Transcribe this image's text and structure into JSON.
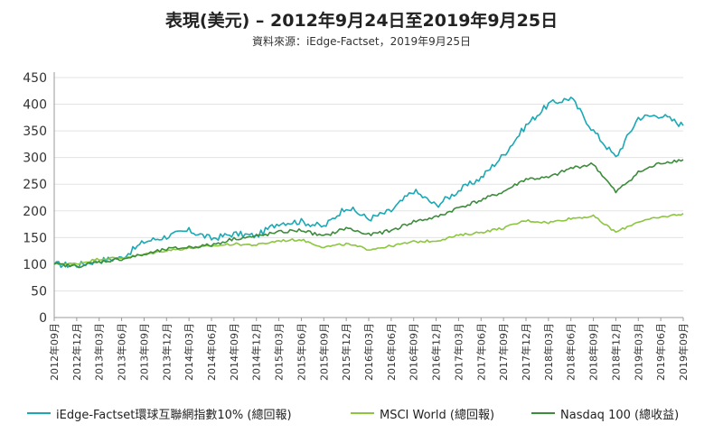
{
  "title": "表現(美元) – 2012年9月24日至2019年9月25日",
  "subtitle": "資料來源：iEdge-Factset，2019年9月25日",
  "chart_data": {
    "type": "line",
    "title": "表現(美元) – 2012年9月24日至2019年9月25日",
    "subtitle": "資料來源：iEdge-Factset，2019年9月25日",
    "xlabel": "",
    "ylabel": "",
    "ylim": [
      0,
      450
    ],
    "y_ticks": [
      0,
      50,
      100,
      150,
      200,
      250,
      300,
      350,
      400,
      450
    ],
    "grid": "horizontal",
    "legend_position": "bottom",
    "x_tick_labels": [
      "2012年09月",
      "2012年12月",
      "2013年03月",
      "2013年06月",
      "2013年09月",
      "2013年12月",
      "2014年03月",
      "2014年06月",
      "2014年09月",
      "2014年12月",
      "2015年03月",
      "2015年06月",
      "2015年09月",
      "2015年12月",
      "2016年03月",
      "2016年06月",
      "2016年09月",
      "2016年12月",
      "2017年03月",
      "2017年06月",
      "2017年09月",
      "2017年12月",
      "2018年03月",
      "2018年06月",
      "2018年09月",
      "2018年12月",
      "2019年03月",
      "2019年06月",
      "2019年09月"
    ],
    "x": [
      "2012-09",
      "2012-12",
      "2013-03",
      "2013-06",
      "2013-09",
      "2013-12",
      "2014-03",
      "2014-06",
      "2014-09",
      "2014-12",
      "2015-03",
      "2015-06",
      "2015-09",
      "2015-12",
      "2016-03",
      "2016-06",
      "2016-09",
      "2016-12",
      "2017-03",
      "2017-06",
      "2017-09",
      "2017-12",
      "2018-03",
      "2018-06",
      "2018-09",
      "2018-12",
      "2019-03",
      "2019-06",
      "2019-09"
    ],
    "series": [
      {
        "name": "iEdge-Factset環球互聯網指數10% (總回報)",
        "color": "#1aa9b4",
        "values": [
          100,
          98,
          107,
          112,
          142,
          152,
          163,
          148,
          157,
          153,
          178,
          180,
          170,
          208,
          185,
          200,
          238,
          210,
          238,
          262,
          305,
          360,
          400,
          412,
          350,
          300,
          375,
          380,
          360
        ]
      },
      {
        "name": "MSCI World (總回報)",
        "color": "#8cc63f",
        "values": [
          100,
          101,
          110,
          112,
          118,
          126,
          130,
          134,
          138,
          136,
          144,
          146,
          132,
          138,
          128,
          134,
          142,
          144,
          154,
          160,
          168,
          182,
          178,
          186,
          190,
          160,
          180,
          188,
          195
        ]
      },
      {
        "name": "Nasdaq 100 (總收益)",
        "color": "#3c8c3c",
        "values": [
          100,
          96,
          104,
          110,
          118,
          128,
          132,
          136,
          148,
          152,
          160,
          164,
          152,
          168,
          155,
          163,
          180,
          188,
          206,
          220,
          236,
          260,
          262,
          280,
          288,
          235,
          272,
          290,
          296
        ]
      }
    ]
  }
}
